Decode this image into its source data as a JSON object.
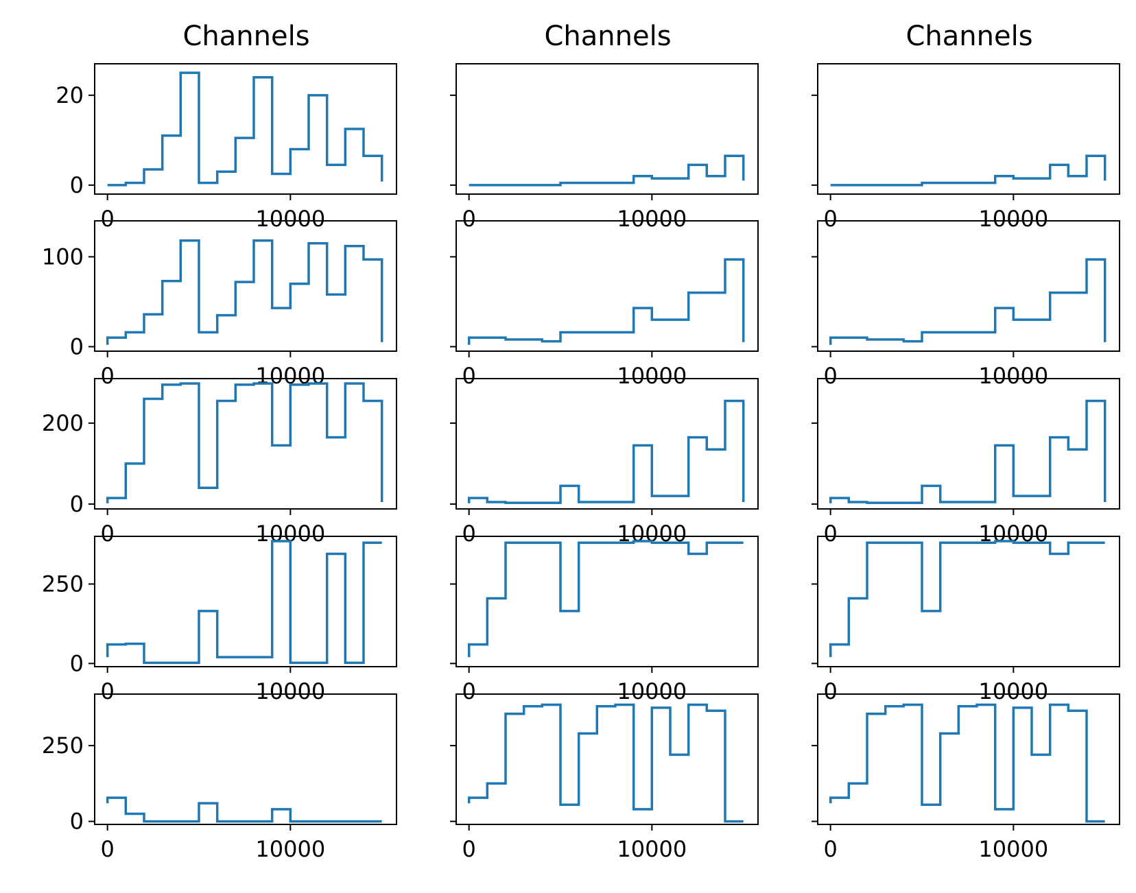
{
  "colors": {
    "series": "#1f77b4",
    "axes": "#000000"
  },
  "chart_data": {
    "type": "line",
    "layout": "5 rows x 3 columns of small multiples, y-axis shared across each row",
    "grid": false,
    "column_titles": [
      "Channels",
      "Channels",
      "Channels"
    ],
    "x_range": [
      -700,
      15800
    ],
    "x_ticks": [
      0,
      10000
    ],
    "rows": [
      {
        "ylim": [
          -2,
          27
        ],
        "yticks": [
          0,
          20
        ],
        "panels": [
          {
            "x": [
              0,
              1000,
              1000,
              2000,
              2000,
              3000,
              3000,
              4000,
              4000,
              5000,
              5000,
              6000,
              6000,
              7000,
              7000,
              8000,
              8000,
              9000,
              9000,
              10000,
              10000,
              11000,
              11000,
              12000,
              12000,
              13000,
              13000,
              14000,
              14000,
              15000,
              15000
            ],
            "y": [
              0,
              0,
              0.5,
              0.5,
              3.5,
              3.5,
              11,
              11,
              25,
              25,
              0.5,
              0.5,
              3,
              3,
              10.5,
              10.5,
              24,
              24,
              2.5,
              2.5,
              8,
              8,
              20,
              20,
              4.5,
              4.5,
              12.5,
              12.5,
              6.5,
              6.5,
              0.8
            ]
          },
          {
            "x": [
              0,
              5000,
              5000,
              9000,
              9000,
              10000,
              10000,
              12000,
              12000,
              13000,
              13000,
              14000,
              14000,
              15000,
              15000
            ],
            "y": [
              0,
              0,
              0.5,
              0.5,
              2,
              2,
              1.5,
              1.5,
              4.5,
              4.5,
              2,
              2,
              6.5,
              6.5,
              1
            ]
          },
          {
            "x": [
              0,
              5000,
              5000,
              9000,
              9000,
              10000,
              10000,
              12000,
              12000,
              13000,
              13000,
              14000,
              14000,
              15000,
              15000
            ],
            "y": [
              0,
              0,
              0.5,
              0.5,
              2,
              2,
              1.5,
              1.5,
              4.5,
              4.5,
              2,
              2,
              6.5,
              6.5,
              1
            ]
          }
        ]
      },
      {
        "ylim": [
          -5,
          140
        ],
        "yticks": [
          0,
          100
        ],
        "panels": [
          {
            "x": [
              0,
              0,
              1000,
              1000,
              2000,
              2000,
              3000,
              3000,
              4000,
              4000,
              5000,
              5000,
              6000,
              6000,
              7000,
              7000,
              8000,
              8000,
              9000,
              9000,
              10000,
              10000,
              11000,
              11000,
              12000,
              12000,
              13000,
              13000,
              14000,
              14000,
              15000,
              15000
            ],
            "y": [
              2,
              10,
              10,
              16,
              16,
              36,
              36,
              73,
              73,
              118,
              118,
              16,
              16,
              35,
              35,
              72,
              72,
              118,
              118,
              43,
              43,
              70,
              70,
              115,
              115,
              58,
              58,
              112,
              112,
              97,
              97,
              5
            ]
          },
          {
            "x": [
              0,
              0,
              2000,
              2000,
              4000,
              4000,
              5000,
              5000,
              9000,
              9000,
              10000,
              10000,
              12000,
              12000,
              14000,
              14000,
              15000,
              15000
            ],
            "y": [
              2,
              10,
              10,
              8,
              8,
              6,
              6,
              16,
              16,
              43,
              43,
              30,
              30,
              60,
              60,
              97,
              97,
              5
            ]
          },
          {
            "x": [
              0,
              0,
              2000,
              2000,
              4000,
              4000,
              5000,
              5000,
              9000,
              9000,
              10000,
              10000,
              12000,
              12000,
              14000,
              14000,
              15000,
              15000
            ],
            "y": [
              2,
              10,
              10,
              8,
              8,
              6,
              6,
              16,
              16,
              43,
              43,
              30,
              30,
              60,
              60,
              97,
              97,
              5
            ]
          }
        ]
      },
      {
        "ylim": [
          -12,
          310
        ],
        "yticks": [
          0,
          200
        ],
        "panels": [
          {
            "x": [
              0,
              0,
              1000,
              1000,
              2000,
              2000,
              3000,
              3000,
              4000,
              4000,
              5000,
              5000,
              6000,
              6000,
              7000,
              7000,
              8000,
              8000,
              9000,
              9000,
              10000,
              10000,
              11000,
              11000,
              12000,
              12000,
              13000,
              13000,
              14000,
              14000,
              15000,
              15000
            ],
            "y": [
              2,
              15,
              15,
              100,
              100,
              260,
              260,
              295,
              295,
              298,
              298,
              40,
              40,
              255,
              255,
              295,
              295,
              298,
              298,
              145,
              145,
              295,
              295,
              298,
              298,
              165,
              165,
              298,
              298,
              255,
              255,
              5
            ]
          },
          {
            "x": [
              0,
              0,
              1000,
              1000,
              2000,
              2000,
              5000,
              5000,
              6000,
              6000,
              9000,
              9000,
              10000,
              10000,
              12000,
              12000,
              13000,
              13000,
              14000,
              14000,
              15000,
              15000
            ],
            "y": [
              2,
              15,
              15,
              5,
              5,
              3,
              3,
              45,
              45,
              5,
              5,
              145,
              145,
              20,
              20,
              165,
              165,
              135,
              135,
              255,
              255,
              5
            ]
          },
          {
            "x": [
              0,
              0,
              1000,
              1000,
              2000,
              2000,
              5000,
              5000,
              6000,
              6000,
              9000,
              9000,
              10000,
              10000,
              12000,
              12000,
              13000,
              13000,
              14000,
              14000,
              15000,
              15000
            ],
            "y": [
              2,
              15,
              15,
              5,
              5,
              3,
              3,
              45,
              45,
              5,
              5,
              145,
              145,
              20,
              20,
              165,
              165,
              135,
              135,
              255,
              255,
              5
            ]
          }
        ]
      },
      {
        "ylim": [
          -10,
          400
        ],
        "yticks": [
          0,
          250
        ],
        "panels": [
          {
            "x": [
              0,
              0,
              1000,
              1000,
              2000,
              2000,
              5000,
              5000,
              6000,
              6000,
              9000,
              9000,
              10000,
              10000,
              12000,
              12000,
              13000,
              13000,
              14000,
              14000,
              15000
            ],
            "y": [
              20,
              60,
              60,
              62,
              62,
              2,
              2,
              165,
              165,
              20,
              20,
              385,
              385,
              2,
              2,
              345,
              345,
              2,
              2,
              380,
              380
            ]
          },
          {
            "x": [
              0,
              0,
              1000,
              1000,
              2000,
              2000,
              5000,
              5000,
              6000,
              6000,
              9000,
              9000,
              10000,
              10000,
              12000,
              12000,
              13000,
              13000,
              15000
            ],
            "y": [
              20,
              60,
              60,
              205,
              205,
              380,
              380,
              165,
              165,
              380,
              380,
              385,
              385,
              380,
              380,
              345,
              345,
              380,
              380
            ]
          },
          {
            "x": [
              0,
              0,
              1000,
              1000,
              2000,
              2000,
              5000,
              5000,
              6000,
              6000,
              9000,
              9000,
              10000,
              10000,
              12000,
              12000,
              13000,
              13000,
              15000
            ],
            "y": [
              20,
              60,
              60,
              205,
              205,
              380,
              380,
              165,
              165,
              380,
              380,
              385,
              385,
              380,
              380,
              345,
              345,
              380,
              380
            ]
          }
        ]
      },
      {
        "ylim": [
          -10,
          420
        ],
        "yticks": [
          0,
          250
        ],
        "panels": [
          {
            "x": [
              0,
              0,
              1000,
              1000,
              2000,
              2000,
              5000,
              5000,
              6000,
              6000,
              9000,
              9000,
              10000,
              10000,
              15000
            ],
            "y": [
              60,
              78,
              78,
              25,
              25,
              0,
              0,
              60,
              60,
              0,
              0,
              40,
              40,
              0,
              0
            ]
          },
          {
            "x": [
              0,
              0,
              1000,
              1000,
              2000,
              2000,
              3000,
              3000,
              4000,
              4000,
              5000,
              5000,
              6000,
              6000,
              7000,
              7000,
              8000,
              8000,
              9000,
              9000,
              10000,
              10000,
              11000,
              11000,
              12000,
              12000,
              13000,
              13000,
              14000,
              14000,
              15000
            ],
            "y": [
              60,
              78,
              78,
              125,
              125,
              355,
              355,
              380,
              380,
              385,
              385,
              55,
              55,
              290,
              290,
              380,
              380,
              385,
              385,
              40,
              40,
              375,
              375,
              220,
              220,
              385,
              385,
              365,
              365,
              0,
              0
            ]
          },
          {
            "x": [
              0,
              0,
              1000,
              1000,
              2000,
              2000,
              3000,
              3000,
              4000,
              4000,
              5000,
              5000,
              6000,
              6000,
              7000,
              7000,
              8000,
              8000,
              9000,
              9000,
              10000,
              10000,
              11000,
              11000,
              12000,
              12000,
              13000,
              13000,
              14000,
              14000,
              15000
            ],
            "y": [
              60,
              78,
              78,
              125,
              125,
              355,
              355,
              380,
              380,
              385,
              385,
              55,
              55,
              290,
              290,
              380,
              380,
              385,
              385,
              40,
              40,
              375,
              375,
              220,
              220,
              385,
              385,
              365,
              365,
              0,
              0
            ]
          }
        ]
      }
    ]
  }
}
